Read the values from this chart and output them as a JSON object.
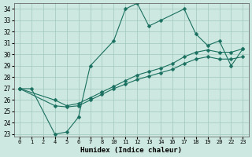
{
  "xlabel": "Humidex (Indice chaleur)",
  "background_color": "#cde8e0",
  "grid_color": "#a0c8bc",
  "line_color": "#1a7060",
  "categories": [
    0,
    1,
    2,
    4,
    5,
    6,
    7,
    8,
    10,
    11,
    12,
    13,
    14,
    16,
    17,
    18,
    19,
    20,
    22,
    23
  ],
  "ylim": [
    22.8,
    34.5
  ],
  "yticks": [
    23,
    24,
    25,
    26,
    27,
    28,
    29,
    30,
    31,
    32,
    33,
    34
  ],
  "line1_x_idx": [
    0,
    1,
    3,
    4,
    5,
    6,
    8,
    9,
    10,
    11,
    12,
    14,
    15,
    16,
    17,
    18,
    19
  ],
  "line1_y": [
    27,
    27,
    23,
    23.2,
    24.5,
    29,
    31.2,
    34.0,
    34.5,
    32.5,
    33,
    34,
    31.8,
    30.8,
    31.2,
    29.0,
    30.5
  ],
  "line2_x_idx": [
    0,
    3,
    4,
    5,
    6,
    7,
    8,
    9,
    10,
    11,
    12,
    13,
    14,
    15,
    16,
    17,
    18,
    19
  ],
  "line2_y": [
    27,
    26.0,
    25.5,
    25.7,
    26.2,
    26.7,
    27.2,
    27.7,
    28.2,
    28.5,
    28.8,
    29.2,
    29.8,
    30.2,
    30.4,
    30.2,
    30.2,
    30.5
  ],
  "line3_x_idx": [
    0,
    3,
    4,
    5,
    6,
    7,
    8,
    9,
    10,
    11,
    12,
    13,
    14,
    15,
    16,
    17,
    18,
    19
  ],
  "line3_y": [
    27,
    25.5,
    25.4,
    25.5,
    26.0,
    26.5,
    27.0,
    27.4,
    27.8,
    28.1,
    28.4,
    28.7,
    29.2,
    29.6,
    29.8,
    29.6,
    29.6,
    29.8
  ]
}
